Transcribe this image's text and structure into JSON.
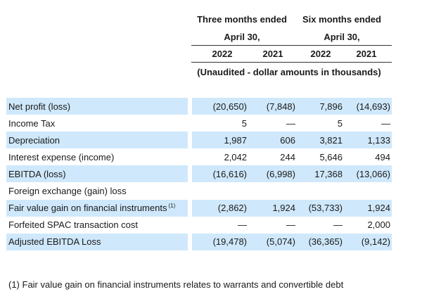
{
  "header": {
    "period_three": "Three months ended",
    "period_three_date": "April 30,",
    "period_six": "Six months ended",
    "period_six_date": "April 30,",
    "years": [
      "2022",
      "2021",
      "2022",
      "2021"
    ],
    "unaudited_note": "(Unaudited - dollar amounts in thousands)"
  },
  "rows": [
    {
      "label": "Net profit (loss)",
      "values": [
        "(20,650)",
        "(7,848)",
        "7,896",
        "(14,693)"
      ],
      "highlight": true
    },
    {
      "label": "Income Tax",
      "values": [
        "5",
        "—",
        "5",
        "—"
      ],
      "highlight": false
    },
    {
      "label": "Depreciation",
      "values": [
        "1,987",
        "606",
        "3,821",
        "1,133"
      ],
      "highlight": true
    },
    {
      "label": "Interest expense (income)",
      "values": [
        "2,042",
        "244",
        "5,646",
        "494"
      ],
      "highlight": false
    },
    {
      "label": "EBITDA (loss)",
      "values": [
        "(16,616)",
        "(6,998)",
        "17,368",
        "(13,066)"
      ],
      "highlight": true
    },
    {
      "label": "Foreign exchange (gain) loss",
      "values": [
        "",
        "",
        "",
        ""
      ],
      "highlight": false
    },
    {
      "label": "Fair value gain on financial instruments",
      "footnote_ref": "(1)",
      "values": [
        "(2,862)",
        "1,924",
        "(53,733)",
        "1,924"
      ],
      "highlight": true
    },
    {
      "label": "Forfeited SPAC transaction cost",
      "values": [
        "—",
        "—",
        "—",
        "2,000"
      ],
      "highlight": false
    },
    {
      "label": "Adjusted EBITDA Loss",
      "values": [
        "(19,478)",
        "(5,074)",
        "(36,365)",
        "(9,142)"
      ],
      "highlight": true
    }
  ],
  "footnote": "(1) Fair value gain on financial instruments relates to warrants and convertible debt",
  "colors": {
    "highlight_row": "#cfe8fb",
    "text": "#1a1a1a",
    "rule": "#333333"
  }
}
